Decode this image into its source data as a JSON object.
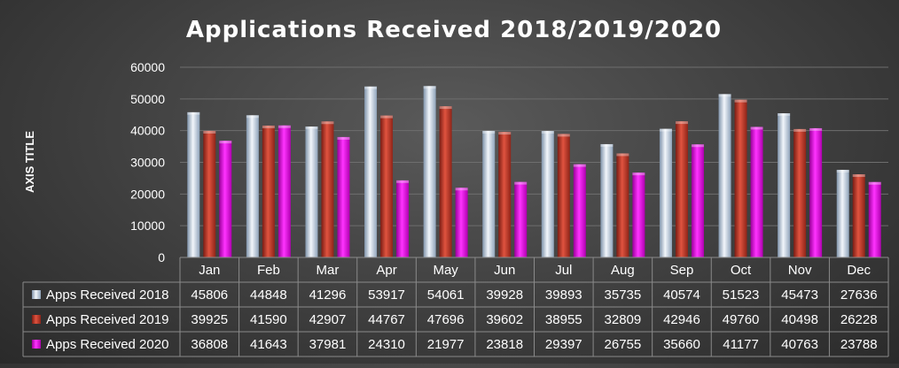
{
  "chart_data": {
    "type": "bar",
    "title": "Applications Received 2018/2019/2020",
    "ylabel": "AXIS TITLE",
    "xlabel": "",
    "ylim": [
      0,
      60000
    ],
    "yticks": [
      "0",
      "10000",
      "20000",
      "30000",
      "40000",
      "50000",
      "60000"
    ],
    "grid": true,
    "legend": "data-table-left",
    "categories": [
      "Jan",
      "Feb",
      "Mar",
      "Apr",
      "May",
      "Jun",
      "Jul",
      "Aug",
      "Sep",
      "Oct",
      "Nov",
      "Dec"
    ],
    "series": [
      {
        "name": "Apps Received 2018",
        "color": "#c9d9ea",
        "values": [
          45806,
          44848,
          41296,
          53917,
          54061,
          39928,
          39893,
          35735,
          40574,
          51523,
          45473,
          27636
        ]
      },
      {
        "name": "Apps Received 2019",
        "color": "#c0392b",
        "values": [
          39925,
          41590,
          42907,
          44767,
          47696,
          39602,
          38955,
          32809,
          42946,
          49760,
          40498,
          26228
        ]
      },
      {
        "name": "Apps Received 2020",
        "color": "#e600e6",
        "values": [
          36808,
          41643,
          37981,
          24310,
          21977,
          23818,
          29397,
          26755,
          35660,
          41177,
          40763,
          23788
        ]
      }
    ]
  }
}
